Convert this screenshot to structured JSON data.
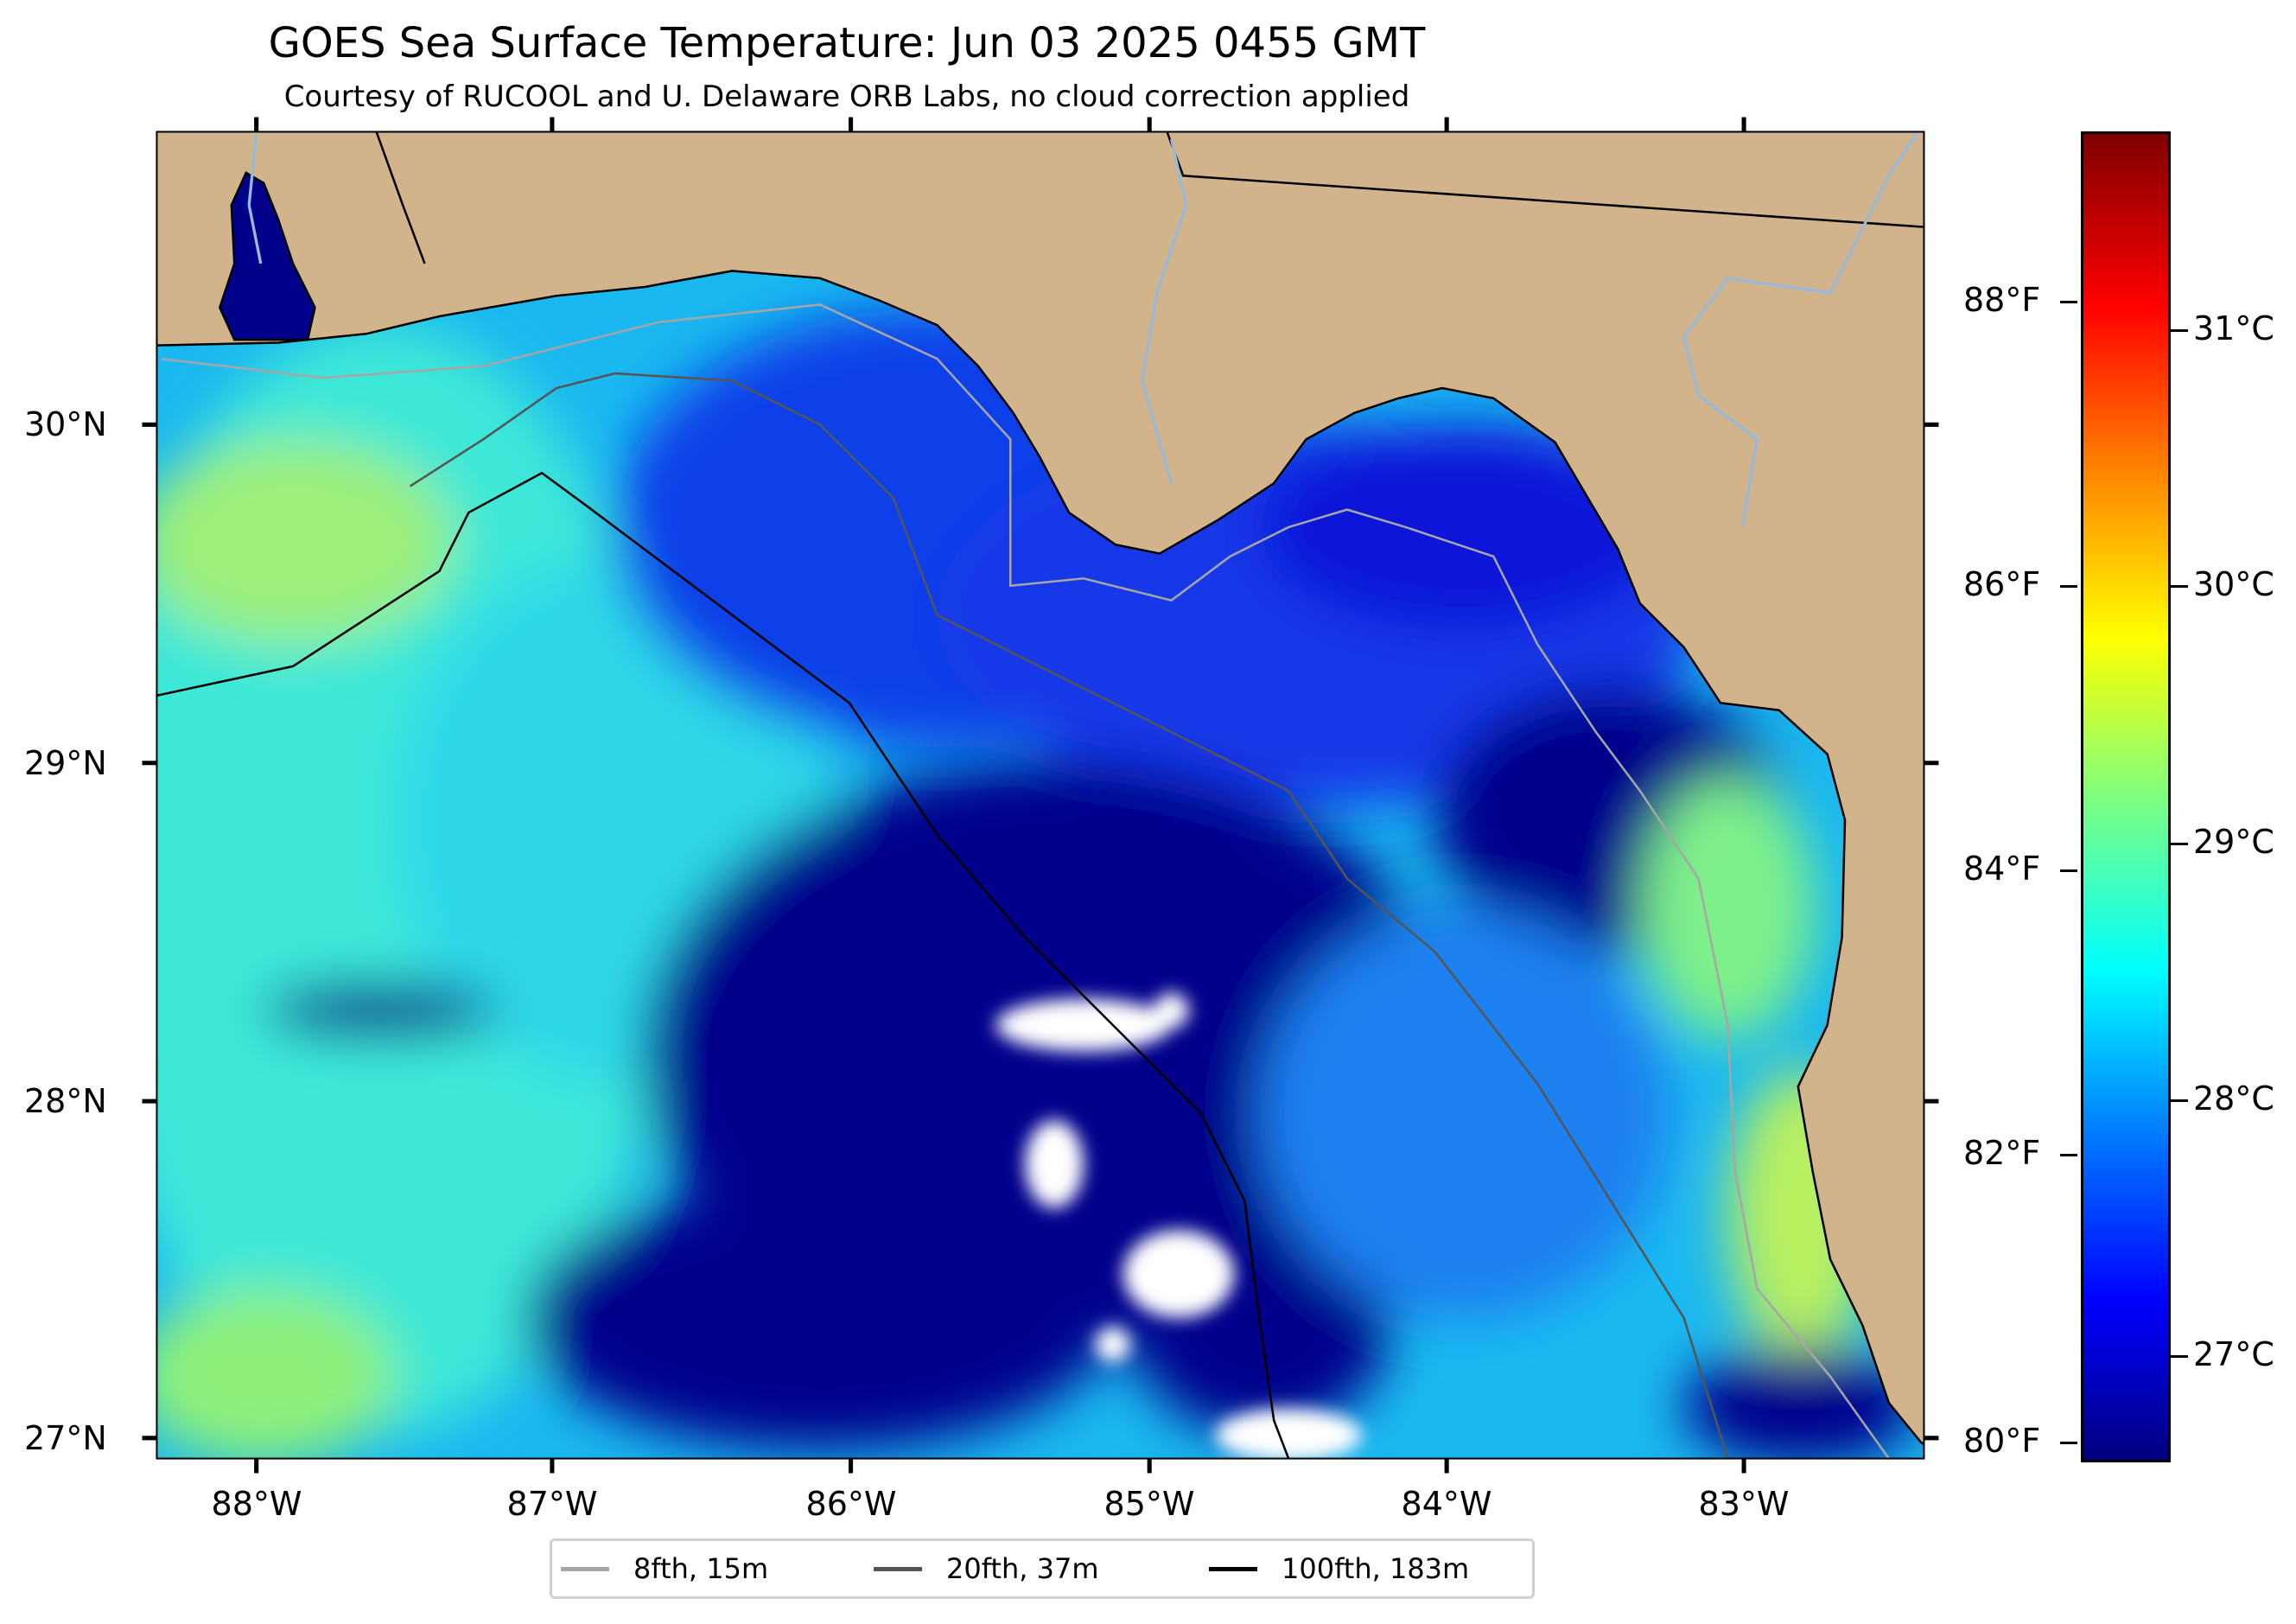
{
  "title": "GOES Sea Surface Temperature: Jun 03 2025 0455 GMT",
  "subtitle": "Courtesy of RUCOOL and U. Delaware ORB Labs, no cloud correction applied",
  "axes": {
    "lon_labels": [
      "88°W",
      "87°W",
      "86°W",
      "85°W",
      "84°W",
      "83°W"
    ],
    "lat_labels": [
      "30°N",
      "29°N",
      "28°N",
      "27°N"
    ]
  },
  "colorbar": {
    "fahrenheit_labels": [
      "88°F",
      "86°F",
      "84°F",
      "82°F",
      "80°F"
    ],
    "celsius_labels": [
      "31°C",
      "30°C",
      "29°C",
      "28°C",
      "27°C"
    ],
    "colormap": "jet"
  },
  "legend": [
    {
      "label": "8fth, 15m",
      "color": "#a6a6a6"
    },
    {
      "label": "20fth, 37m",
      "color": "#555555"
    },
    {
      "label": "100fth, 183m",
      "color": "#000000"
    }
  ],
  "colors": {
    "land": "#d2b48c",
    "cloud": "#ffffff",
    "river": "#9ab8d8"
  }
}
